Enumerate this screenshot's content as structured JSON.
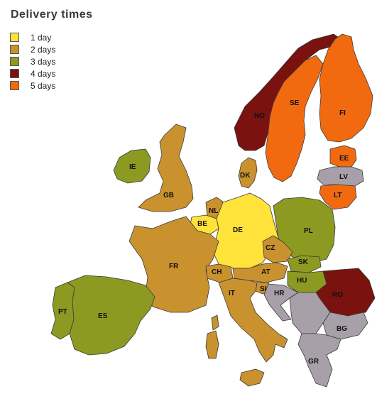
{
  "map": {
    "title": "Delivery times",
    "legend": [
      {
        "label": "1 day",
        "color": "#ffe23a"
      },
      {
        "label": "2 days",
        "color": "#c9922e"
      },
      {
        "label": "3 days",
        "color": "#8c9a22"
      },
      {
        "label": "4 days",
        "color": "#7a1210"
      },
      {
        "label": "5 days",
        "color": "#f26a10"
      }
    ],
    "other_color": "#a8a0a8",
    "countries": [
      {
        "code": "NO",
        "days": 4
      },
      {
        "code": "SE",
        "days": 5
      },
      {
        "code": "FI",
        "days": 5
      },
      {
        "code": "EE",
        "days": 5
      },
      {
        "code": "LV",
        "days": 0
      },
      {
        "code": "LT",
        "days": 5
      },
      {
        "code": "IE",
        "days": 3
      },
      {
        "code": "GB",
        "days": 2
      },
      {
        "code": "DK",
        "days": 2
      },
      {
        "code": "NL",
        "days": 2
      },
      {
        "code": "BE",
        "days": 1
      },
      {
        "code": "DE",
        "days": 1
      },
      {
        "code": "PL",
        "days": 3
      },
      {
        "code": "CZ",
        "days": 2
      },
      {
        "code": "SK",
        "days": 3
      },
      {
        "code": "FR",
        "days": 2
      },
      {
        "code": "CH",
        "days": 2
      },
      {
        "code": "AT",
        "days": 2
      },
      {
        "code": "HU",
        "days": 3
      },
      {
        "code": "RO",
        "days": 4
      },
      {
        "code": "SI",
        "days": 2
      },
      {
        "code": "HR",
        "days": 0
      },
      {
        "code": "IT",
        "days": 2
      },
      {
        "code": "BG",
        "days": 0
      },
      {
        "code": "GR",
        "days": 0
      },
      {
        "code": "PT",
        "days": 3
      },
      {
        "code": "ES",
        "days": 3
      }
    ]
  }
}
